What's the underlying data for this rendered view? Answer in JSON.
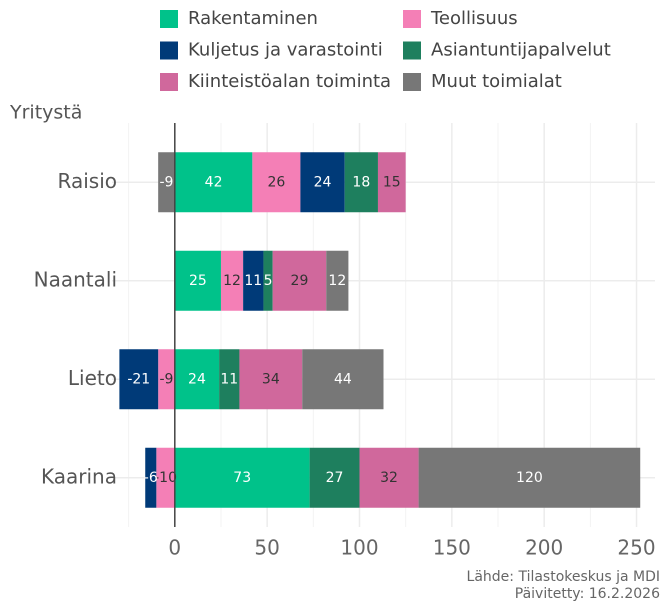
{
  "chart_data": {
    "type": "stacked_barh",
    "y_label": "Yritystä",
    "source": "Lähde: Tilastokeskus ja MDI",
    "updated": "Päivitetty: 16.2.2026",
    "categories": [
      "Raisio",
      "Naantali",
      "Lieto",
      "Kaarina"
    ],
    "series": [
      {
        "name": "Rakentaminen",
        "color": "#00c28a",
        "values": [
          42,
          25,
          24,
          73
        ]
      },
      {
        "name": "Teollisuus",
        "color": "#f47fb6",
        "values": [
          26,
          12,
          -9,
          -10
        ]
      },
      {
        "name": "Kuljetus ja varastointi",
        "color": "#003a78",
        "values": [
          24,
          11,
          -21,
          -6
        ]
      },
      {
        "name": "Asiantuntijapalvelut",
        "color": "#1e7f5e",
        "values": [
          18,
          5,
          11,
          27
        ]
      },
      {
        "name": "Kiinteistöalan toiminta",
        "color": "#d0689c",
        "values": [
          15,
          29,
          34,
          32
        ]
      },
      {
        "name": "Muut toimialat",
        "color": "#777777",
        "values": [
          -9,
          12,
          44,
          120
        ]
      }
    ],
    "xlim": [
      -34,
      260
    ],
    "xticks": [
      0,
      50,
      100,
      150,
      200,
      250
    ],
    "minor_xticks": [
      -25,
      25,
      75,
      125,
      175,
      225
    ],
    "grid": true
  }
}
